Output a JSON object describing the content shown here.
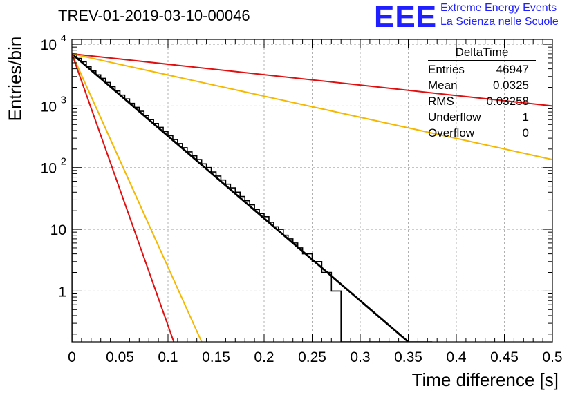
{
  "header": {
    "title": "TREV-01-2019-03-10-00046",
    "logo_text": "EEE",
    "logo_line1": "Extreme Energy Events",
    "logo_line2": "La Scienza nelle Scuole"
  },
  "stats_box": {
    "name": "DeltaTime",
    "rows": [
      {
        "label": "Entries",
        "value": "46947"
      },
      {
        "label": "Mean",
        "value": "0.0325"
      },
      {
        "label": "RMS",
        "value": "0.03258"
      },
      {
        "label": "Underflow",
        "value": "1"
      },
      {
        "label": "Overflow",
        "value": "0"
      }
    ]
  },
  "chart_data": {
    "type": "line",
    "xlabel": "Time difference [s]",
    "ylabel": "Entries/bin",
    "xlim": [
      0,
      0.5
    ],
    "ylim": [
      0.15,
      12000
    ],
    "yscale": "log",
    "grid": true,
    "x_ticks": [
      "0",
      "0.05",
      "0.1",
      "0.15",
      "0.2",
      "0.25",
      "0.3",
      "0.35",
      "0.4",
      "0.45",
      "0.5"
    ],
    "y_ticks": [
      {
        "value": 1,
        "label": "1"
      },
      {
        "value": 10,
        "label": "10"
      },
      {
        "value": 100,
        "label": "10",
        "exp": "2"
      },
      {
        "value": 1000,
        "label": "10",
        "exp": "3"
      },
      {
        "value": 10000,
        "label": "10",
        "exp": "4"
      }
    ],
    "histogram": {
      "bin_width": 0.005,
      "values": [
        6800,
        5900,
        5200,
        4300,
        3700,
        3200,
        2800,
        2400,
        2050,
        1750,
        1500,
        1300,
        1100,
        950,
        820,
        700,
        600,
        520,
        450,
        385,
        330,
        285,
        245,
        210,
        180,
        155,
        135,
        115,
        100,
        85,
        73,
        63,
        54,
        47,
        40,
        34,
        29,
        25,
        21,
        18,
        16,
        13,
        11,
        10,
        8,
        7,
        6,
        5,
        4,
        4,
        3,
        3,
        2,
        2,
        1,
        1,
        0,
        0,
        0,
        0,
        0,
        0,
        0,
        0,
        0,
        0,
        0,
        0,
        0,
        0,
        0,
        0,
        0,
        0,
        0
      ],
      "color": "#000000"
    },
    "fit_lines": [
      {
        "color": "#000000",
        "x": [
          0,
          0.35
        ],
        "y": [
          7000,
          0.15
        ]
      },
      {
        "color": "#e01010",
        "x": [
          0,
          0.5
        ],
        "y": [
          7000,
          1000
        ]
      },
      {
        "color": "#f5b800",
        "x": [
          0,
          0.5
        ],
        "y": [
          7000,
          135
        ]
      },
      {
        "color": "#f5b800",
        "x": [
          0,
          0.135
        ],
        "y": [
          7000,
          0.15
        ]
      },
      {
        "color": "#e01010",
        "x": [
          0,
          0.106
        ],
        "y": [
          7000,
          0.15
        ]
      }
    ]
  }
}
